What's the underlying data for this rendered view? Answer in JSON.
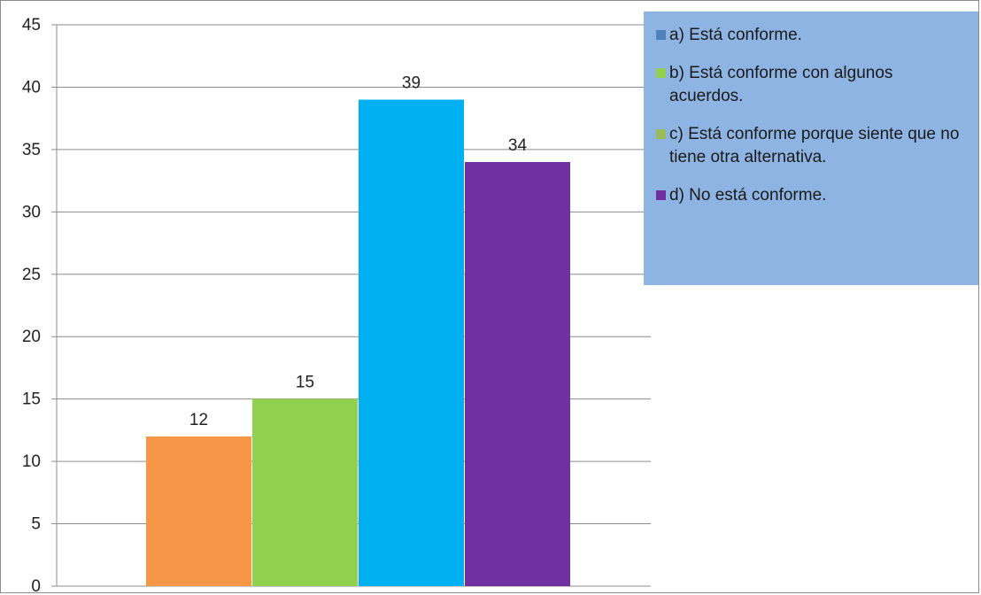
{
  "chart_data": {
    "type": "bar",
    "categories": [
      "a) Está conforme.",
      "b) Está conforme con algunos acuerdos.",
      "c) Está conforme porque siente que no tiene otra alternativa.",
      "d) No está conforme."
    ],
    "values": [
      12,
      15,
      39,
      34
    ],
    "data_labels": [
      "12",
      "15",
      "39",
      "34"
    ],
    "bar_colors": [
      "#f79646",
      "#92d050",
      "#00b0f0",
      "#7030a0"
    ],
    "ylim": [
      0,
      45
    ],
    "yticks": [
      "0",
      "5",
      "10",
      "15",
      "20",
      "25",
      "30",
      "35",
      "40",
      "45"
    ],
    "grid": true,
    "legend_placement": "top-right",
    "legend_background": "#8eb4e3",
    "legend": [
      {
        "label": "a) Está conforme.",
        "color": "#4f81bd"
      },
      {
        "label": "b) Está conforme con algunos acuerdos.",
        "color": "#92d050"
      },
      {
        "label": "c) Está conforme porque siente que no tiene otra alternativa.",
        "color": "#9bbb59"
      },
      {
        "label": "d) No está conforme.",
        "color": "#7030a0"
      }
    ]
  }
}
